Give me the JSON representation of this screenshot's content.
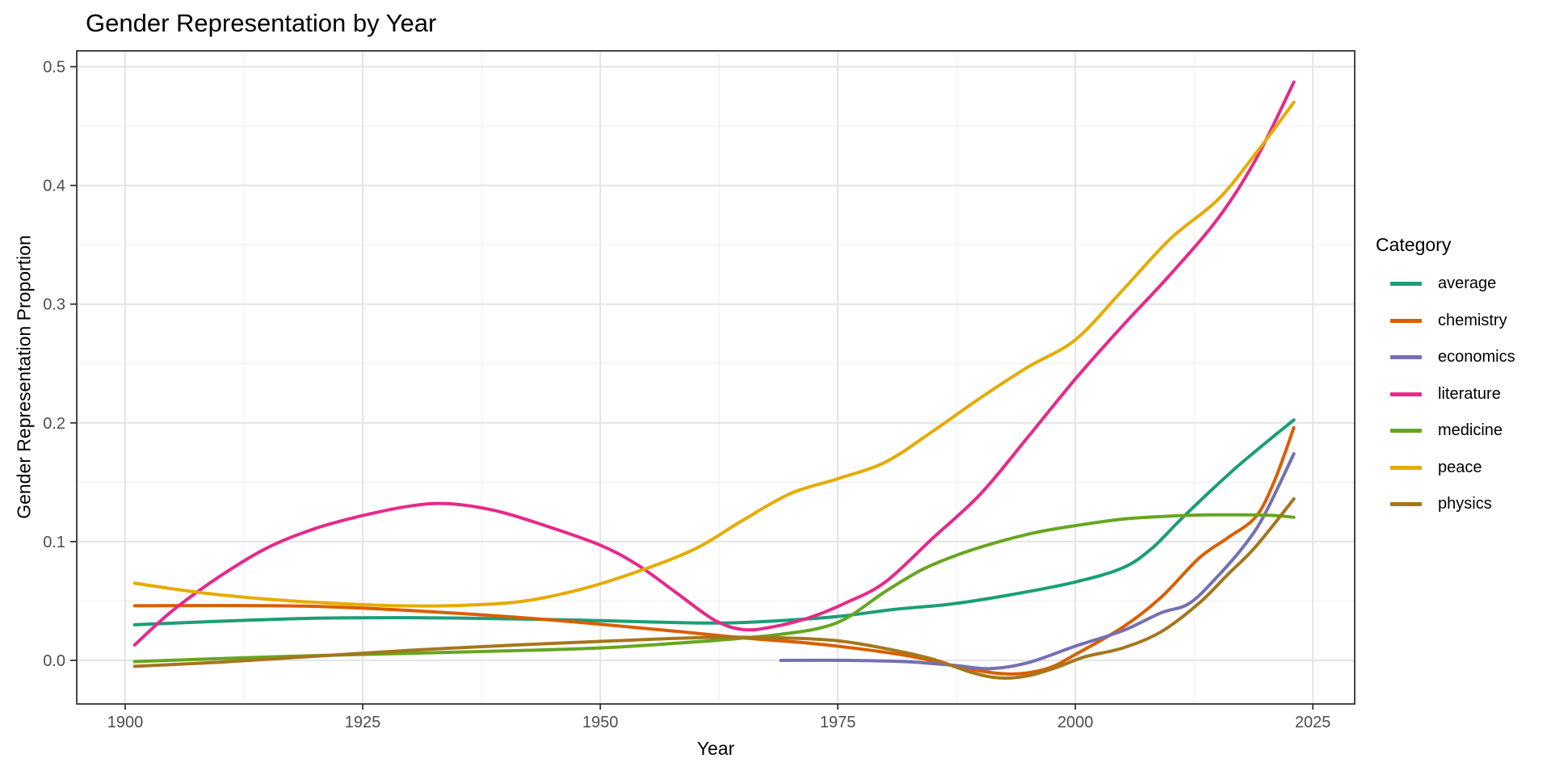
{
  "chart_data": {
    "type": "line",
    "title": "Gender Representation by Year",
    "xlabel": "Year",
    "ylabel": "Gender Representation Proportion",
    "legend_title": "Category",
    "legend_position": "right",
    "grid": "major+minor",
    "x_domain": [
      1894.9,
      2029.4
    ],
    "y_domain": [
      -0.0367,
      0.5133
    ],
    "x_ticks": [
      1900,
      1925,
      1950,
      1975,
      2000,
      2025
    ],
    "x_tick_labels": [
      "1900",
      "1925",
      "1950",
      "1975",
      "2000",
      "2025"
    ],
    "x_minor_ticks": [
      1912.5,
      1937.5,
      1962.5,
      1987.5,
      2012.5
    ],
    "y_ticks": [
      0.0,
      0.1,
      0.2,
      0.3,
      0.4,
      0.5
    ],
    "y_tick_labels": [
      "0.0",
      "0.1",
      "0.2",
      "0.3",
      "0.4",
      "0.5"
    ],
    "y_minor_ticks": [
      0.05,
      0.15,
      0.25,
      0.35,
      0.45
    ],
    "series": [
      {
        "name": "average",
        "color": "#1B9E77",
        "points": [
          [
            1901,
            0.03
          ],
          [
            1910,
            0.033
          ],
          [
            1920,
            0.0355
          ],
          [
            1930,
            0.036
          ],
          [
            1940,
            0.035
          ],
          [
            1950,
            0.0335
          ],
          [
            1957,
            0.032
          ],
          [
            1963,
            0.0315
          ],
          [
            1969,
            0.0335
          ],
          [
            1975,
            0.037
          ],
          [
            1981,
            0.043
          ],
          [
            1987,
            0.0475
          ],
          [
            1993,
            0.055
          ],
          [
            2000,
            0.066
          ],
          [
            2005,
            0.078
          ],
          [
            2008,
            0.094
          ],
          [
            2011,
            0.118
          ],
          [
            2014,
            0.141
          ],
          [
            2017,
            0.163
          ],
          [
            2020,
            0.183
          ],
          [
            2023,
            0.2025
          ]
        ]
      },
      {
        "name": "chemistry",
        "color": "#D95F02",
        "points": [
          [
            1901,
            0.046
          ],
          [
            1910,
            0.0462
          ],
          [
            1920,
            0.0455
          ],
          [
            1930,
            0.042
          ],
          [
            1940,
            0.037
          ],
          [
            1950,
            0.0305
          ],
          [
            1958,
            0.0245
          ],
          [
            1965,
            0.019
          ],
          [
            1972,
            0.0145
          ],
          [
            1978,
            0.009
          ],
          [
            1983,
            0.003
          ],
          [
            1988,
            -0.006
          ],
          [
            1993,
            -0.0115
          ],
          [
            1997,
            -0.007
          ],
          [
            2000,
            0.005
          ],
          [
            2005,
            0.028
          ],
          [
            2009,
            0.053
          ],
          [
            2013,
            0.086
          ],
          [
            2016,
            0.103
          ],
          [
            2019,
            0.121
          ],
          [
            2021,
            0.152
          ],
          [
            2023,
            0.196
          ]
        ]
      },
      {
        "name": "economics",
        "color": "#7570B3",
        "points": [
          [
            1969,
            0.0
          ],
          [
            1976,
            0.0
          ],
          [
            1982,
            -0.001
          ],
          [
            1987,
            -0.004
          ],
          [
            1991,
            -0.007
          ],
          [
            1995,
            -0.002
          ],
          [
            2000,
            0.012
          ],
          [
            2005,
            0.025
          ],
          [
            2009,
            0.04
          ],
          [
            2012,
            0.048
          ],
          [
            2015,
            0.071
          ],
          [
            2018,
            0.099
          ],
          [
            2020,
            0.124
          ],
          [
            2023,
            0.174
          ]
        ]
      },
      {
        "name": "literature",
        "color": "#E7298A",
        "points": [
          [
            1901,
            0.013
          ],
          [
            1905,
            0.042
          ],
          [
            1910,
            0.071
          ],
          [
            1915,
            0.095
          ],
          [
            1920,
            0.111
          ],
          [
            1925,
            0.122
          ],
          [
            1930,
            0.13
          ],
          [
            1934,
            0.132
          ],
          [
            1939,
            0.126
          ],
          [
            1944,
            0.114
          ],
          [
            1950,
            0.097
          ],
          [
            1954,
            0.08
          ],
          [
            1958,
            0.057
          ],
          [
            1962,
            0.034
          ],
          [
            1965,
            0.026
          ],
          [
            1968,
            0.028
          ],
          [
            1972,
            0.036
          ],
          [
            1976,
            0.049
          ],
          [
            1980,
            0.066
          ],
          [
            1985,
            0.103
          ],
          [
            1990,
            0.14
          ],
          [
            1995,
            0.188
          ],
          [
            2000,
            0.237
          ],
          [
            2005,
            0.282
          ],
          [
            2010,
            0.325
          ],
          [
            2015,
            0.372
          ],
          [
            2019,
            0.422
          ],
          [
            2023,
            0.487
          ]
        ]
      },
      {
        "name": "medicine",
        "color": "#66A61E",
        "points": [
          [
            1901,
            -0.001
          ],
          [
            1910,
            0.0015
          ],
          [
            1920,
            0.004
          ],
          [
            1930,
            0.006
          ],
          [
            1940,
            0.008
          ],
          [
            1950,
            0.0105
          ],
          [
            1958,
            0.0145
          ],
          [
            1964,
            0.018
          ],
          [
            1969,
            0.022
          ],
          [
            1973,
            0.027
          ],
          [
            1976,
            0.036
          ],
          [
            1980,
            0.058
          ],
          [
            1984,
            0.077
          ],
          [
            1988,
            0.09
          ],
          [
            1992,
            0.1
          ],
          [
            1996,
            0.108
          ],
          [
            2000,
            0.1135
          ],
          [
            2005,
            0.119
          ],
          [
            2010,
            0.1215
          ],
          [
            2014,
            0.1225
          ],
          [
            2018,
            0.1225
          ],
          [
            2021,
            0.122
          ],
          [
            2023,
            0.1205
          ]
        ]
      },
      {
        "name": "peace",
        "color": "#E6AB02",
        "points": [
          [
            1901,
            0.065
          ],
          [
            1908,
            0.057
          ],
          [
            1915,
            0.0515
          ],
          [
            1922,
            0.048
          ],
          [
            1929,
            0.046
          ],
          [
            1936,
            0.0465
          ],
          [
            1942,
            0.05
          ],
          [
            1948,
            0.06
          ],
          [
            1954,
            0.075
          ],
          [
            1960,
            0.094
          ],
          [
            1965,
            0.118
          ],
          [
            1970,
            0.1405
          ],
          [
            1975,
            0.153
          ],
          [
            1980,
            0.167
          ],
          [
            1985,
            0.193
          ],
          [
            1990,
            0.221
          ],
          [
            1995,
            0.247
          ],
          [
            2000,
            0.27
          ],
          [
            2005,
            0.312
          ],
          [
            2010,
            0.355
          ],
          [
            2015,
            0.388
          ],
          [
            2019,
            0.427
          ],
          [
            2023,
            0.47
          ]
        ]
      },
      {
        "name": "physics",
        "color": "#A6761D",
        "points": [
          [
            1901,
            -0.005
          ],
          [
            1910,
            -0.0015
          ],
          [
            1920,
            0.0035
          ],
          [
            1930,
            0.0085
          ],
          [
            1940,
            0.0125
          ],
          [
            1950,
            0.016
          ],
          [
            1957,
            0.0183
          ],
          [
            1963,
            0.0195
          ],
          [
            1969,
            0.019
          ],
          [
            1975,
            0.0165
          ],
          [
            1980,
            0.01
          ],
          [
            1985,
            0.001
          ],
          [
            1989,
            -0.01
          ],
          [
            1992,
            -0.0148
          ],
          [
            1995,
            -0.013
          ],
          [
            1998,
            -0.006
          ],
          [
            2001,
            0.003
          ],
          [
            2005,
            0.0105
          ],
          [
            2009,
            0.024
          ],
          [
            2013,
            0.048
          ],
          [
            2016,
            0.072
          ],
          [
            2019,
            0.096
          ],
          [
            2023,
            0.136
          ]
        ]
      }
    ]
  },
  "styles": {
    "background": "#FFFFFF",
    "grid_major": "#E4E4E4",
    "grid_minor": "#F0F0F0",
    "panel_border": "#333333",
    "tick_color": "#333333",
    "tick_label_color": "#4D4D4D",
    "text_color": "#000000"
  }
}
